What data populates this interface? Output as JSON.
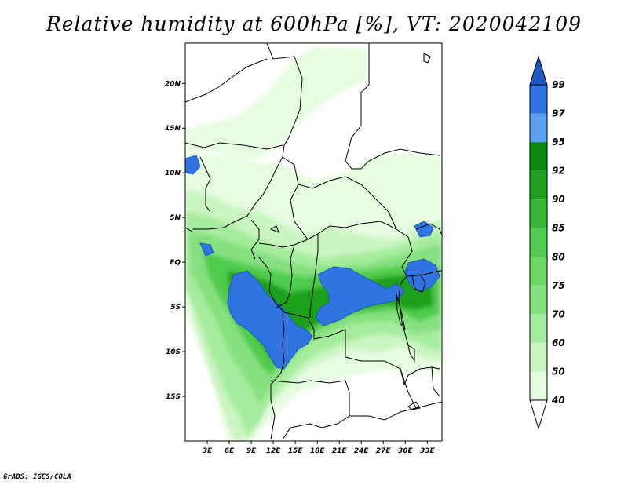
{
  "map": {
    "title": "Relative humidity at 600hPa [%], VT: 2020042109",
    "credit": "GrADS: IGES/COLA",
    "lat_labels": [
      "20N",
      "15N",
      "10N",
      "5N",
      "EQ",
      "5S",
      "10S",
      "15S"
    ],
    "lon_labels": [
      "3E",
      "6E",
      "9E",
      "12E",
      "15E",
      "18E",
      "21E",
      "24E",
      "27E",
      "30E",
      "33E"
    ],
    "lat_values": [
      20,
      15,
      10,
      5,
      0,
      -5,
      -10,
      -15
    ],
    "lon_values": [
      3,
      6,
      9,
      12,
      15,
      18,
      21,
      24,
      27,
      30,
      33
    ],
    "extent": {
      "lon_min": 0,
      "lon_max": 35,
      "lat_min": -20,
      "lat_max": 24.5
    }
  },
  "colorbar": {
    "levels": [
      "40",
      "50",
      "60",
      "70",
      "75",
      "80",
      "85",
      "90",
      "92",
      "95",
      "97",
      "99"
    ],
    "colors": [
      "#ffffff",
      "#e6fce0",
      "#c9f5c0",
      "#a6ec9e",
      "#87e07f",
      "#6bd866",
      "#4fcc4e",
      "#36b836",
      "#1fa01f",
      "#0c8a10",
      "#5aa0f0",
      "#2f74e0",
      "#1e58c0"
    ]
  }
}
